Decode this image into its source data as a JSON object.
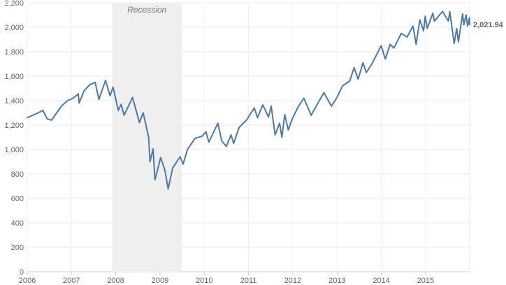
{
  "chart_data": {
    "type": "line",
    "title": "",
    "xlabel": "",
    "ylabel": "",
    "xlim": [
      "2006-01-01",
      "2015-12-31"
    ],
    "ylim": [
      0,
      2200
    ],
    "x_ticks": [
      "2006",
      "2007",
      "2008",
      "2009",
      "2010",
      "2011",
      "2012",
      "2013",
      "2014",
      "2015"
    ],
    "y_ticks": [
      "0",
      "200",
      "400",
      "600",
      "800",
      "1,000",
      "1,200",
      "1,400",
      "1,600",
      "1,800",
      "2,000",
      "2,200"
    ],
    "grid": true,
    "shaded_regions": [
      {
        "label": "Recession",
        "start": "2007-12-01",
        "end": "2009-06-30",
        "color": "#efefef"
      }
    ],
    "last_value_label": "2,021.94",
    "series": [
      {
        "color": "#4e79a7",
        "points": [
          [
            "2006-01-01",
            1260
          ],
          [
            "2006-02-15",
            1280
          ],
          [
            "2006-04-01",
            1300
          ],
          [
            "2006-05-10",
            1320
          ],
          [
            "2006-06-15",
            1250
          ],
          [
            "2006-07-20",
            1240
          ],
          [
            "2006-09-01",
            1300
          ],
          [
            "2006-10-15",
            1360
          ],
          [
            "2006-12-01",
            1400
          ],
          [
            "2007-01-15",
            1420
          ],
          [
            "2007-02-26",
            1455
          ],
          [
            "2007-03-05",
            1380
          ],
          [
            "2007-04-15",
            1480
          ],
          [
            "2007-06-01",
            1530
          ],
          [
            "2007-07-15",
            1550
          ],
          [
            "2007-08-15",
            1410
          ],
          [
            "2007-10-09",
            1565
          ],
          [
            "2007-11-15",
            1440
          ],
          [
            "2007-12-10",
            1510
          ],
          [
            "2008-01-22",
            1320
          ],
          [
            "2008-02-15",
            1370
          ],
          [
            "2008-03-10",
            1280
          ],
          [
            "2008-05-19",
            1425
          ],
          [
            "2008-07-15",
            1220
          ],
          [
            "2008-08-15",
            1300
          ],
          [
            "2008-09-29",
            1100
          ],
          [
            "2008-10-10",
            900
          ],
          [
            "2008-11-04",
            1005
          ],
          [
            "2008-11-20",
            752
          ],
          [
            "2009-01-06",
            935
          ],
          [
            "2009-02-10",
            830
          ],
          [
            "2009-03-09",
            677
          ],
          [
            "2009-04-15",
            850
          ],
          [
            "2009-06-15",
            940
          ],
          [
            "2009-07-10",
            880
          ],
          [
            "2009-08-15",
            1000
          ],
          [
            "2009-10-15",
            1090
          ],
          [
            "2009-12-15",
            1110
          ],
          [
            "2010-01-15",
            1145
          ],
          [
            "2010-02-08",
            1060
          ],
          [
            "2010-04-23",
            1215
          ],
          [
            "2010-05-25",
            1070
          ],
          [
            "2010-07-02",
            1025
          ],
          [
            "2010-08-10",
            1120
          ],
          [
            "2010-08-31",
            1050
          ],
          [
            "2010-10-15",
            1180
          ],
          [
            "2010-12-15",
            1240
          ],
          [
            "2011-02-18",
            1340
          ],
          [
            "2011-03-16",
            1260
          ],
          [
            "2011-04-29",
            1365
          ],
          [
            "2011-06-15",
            1265
          ],
          [
            "2011-07-07",
            1355
          ],
          [
            "2011-08-08",
            1120
          ],
          [
            "2011-09-15",
            1215
          ],
          [
            "2011-10-03",
            1100
          ],
          [
            "2011-10-27",
            1285
          ],
          [
            "2011-11-25",
            1160
          ],
          [
            "2011-12-31",
            1258
          ],
          [
            "2012-02-15",
            1350
          ],
          [
            "2012-04-02",
            1420
          ],
          [
            "2012-06-01",
            1280
          ],
          [
            "2012-07-15",
            1360
          ],
          [
            "2012-09-14",
            1465
          ],
          [
            "2012-11-15",
            1355
          ],
          [
            "2012-12-31",
            1426
          ],
          [
            "2013-02-15",
            1520
          ],
          [
            "2013-04-15",
            1560
          ],
          [
            "2013-05-21",
            1670
          ],
          [
            "2013-06-24",
            1575
          ],
          [
            "2013-08-02",
            1710
          ],
          [
            "2013-08-30",
            1630
          ],
          [
            "2013-10-15",
            1700
          ],
          [
            "2013-12-31",
            1850
          ],
          [
            "2014-02-03",
            1740
          ],
          [
            "2014-03-15",
            1860
          ],
          [
            "2014-04-15",
            1830
          ],
          [
            "2014-06-15",
            1950
          ],
          [
            "2014-08-01",
            1920
          ],
          [
            "2014-09-19",
            2010
          ],
          [
            "2014-10-15",
            1860
          ],
          [
            "2014-11-15",
            2060
          ],
          [
            "2014-12-16",
            1970
          ],
          [
            "2014-12-29",
            2090
          ],
          [
            "2015-01-15",
            1990
          ],
          [
            "2015-03-02",
            2115
          ],
          [
            "2015-03-15",
            2050
          ],
          [
            "2015-05-21",
            2130
          ],
          [
            "2015-07-08",
            2050
          ],
          [
            "2015-07-20",
            2128
          ],
          [
            "2015-08-25",
            1867
          ],
          [
            "2015-09-15",
            1990
          ],
          [
            "2015-09-29",
            1880
          ],
          [
            "2015-11-03",
            2110
          ],
          [
            "2015-11-13",
            2020
          ],
          [
            "2015-12-01",
            2100
          ],
          [
            "2015-12-14",
            2010
          ],
          [
            "2015-12-29",
            2078
          ],
          [
            "2015-12-31",
            2021.94
          ]
        ]
      }
    ]
  }
}
